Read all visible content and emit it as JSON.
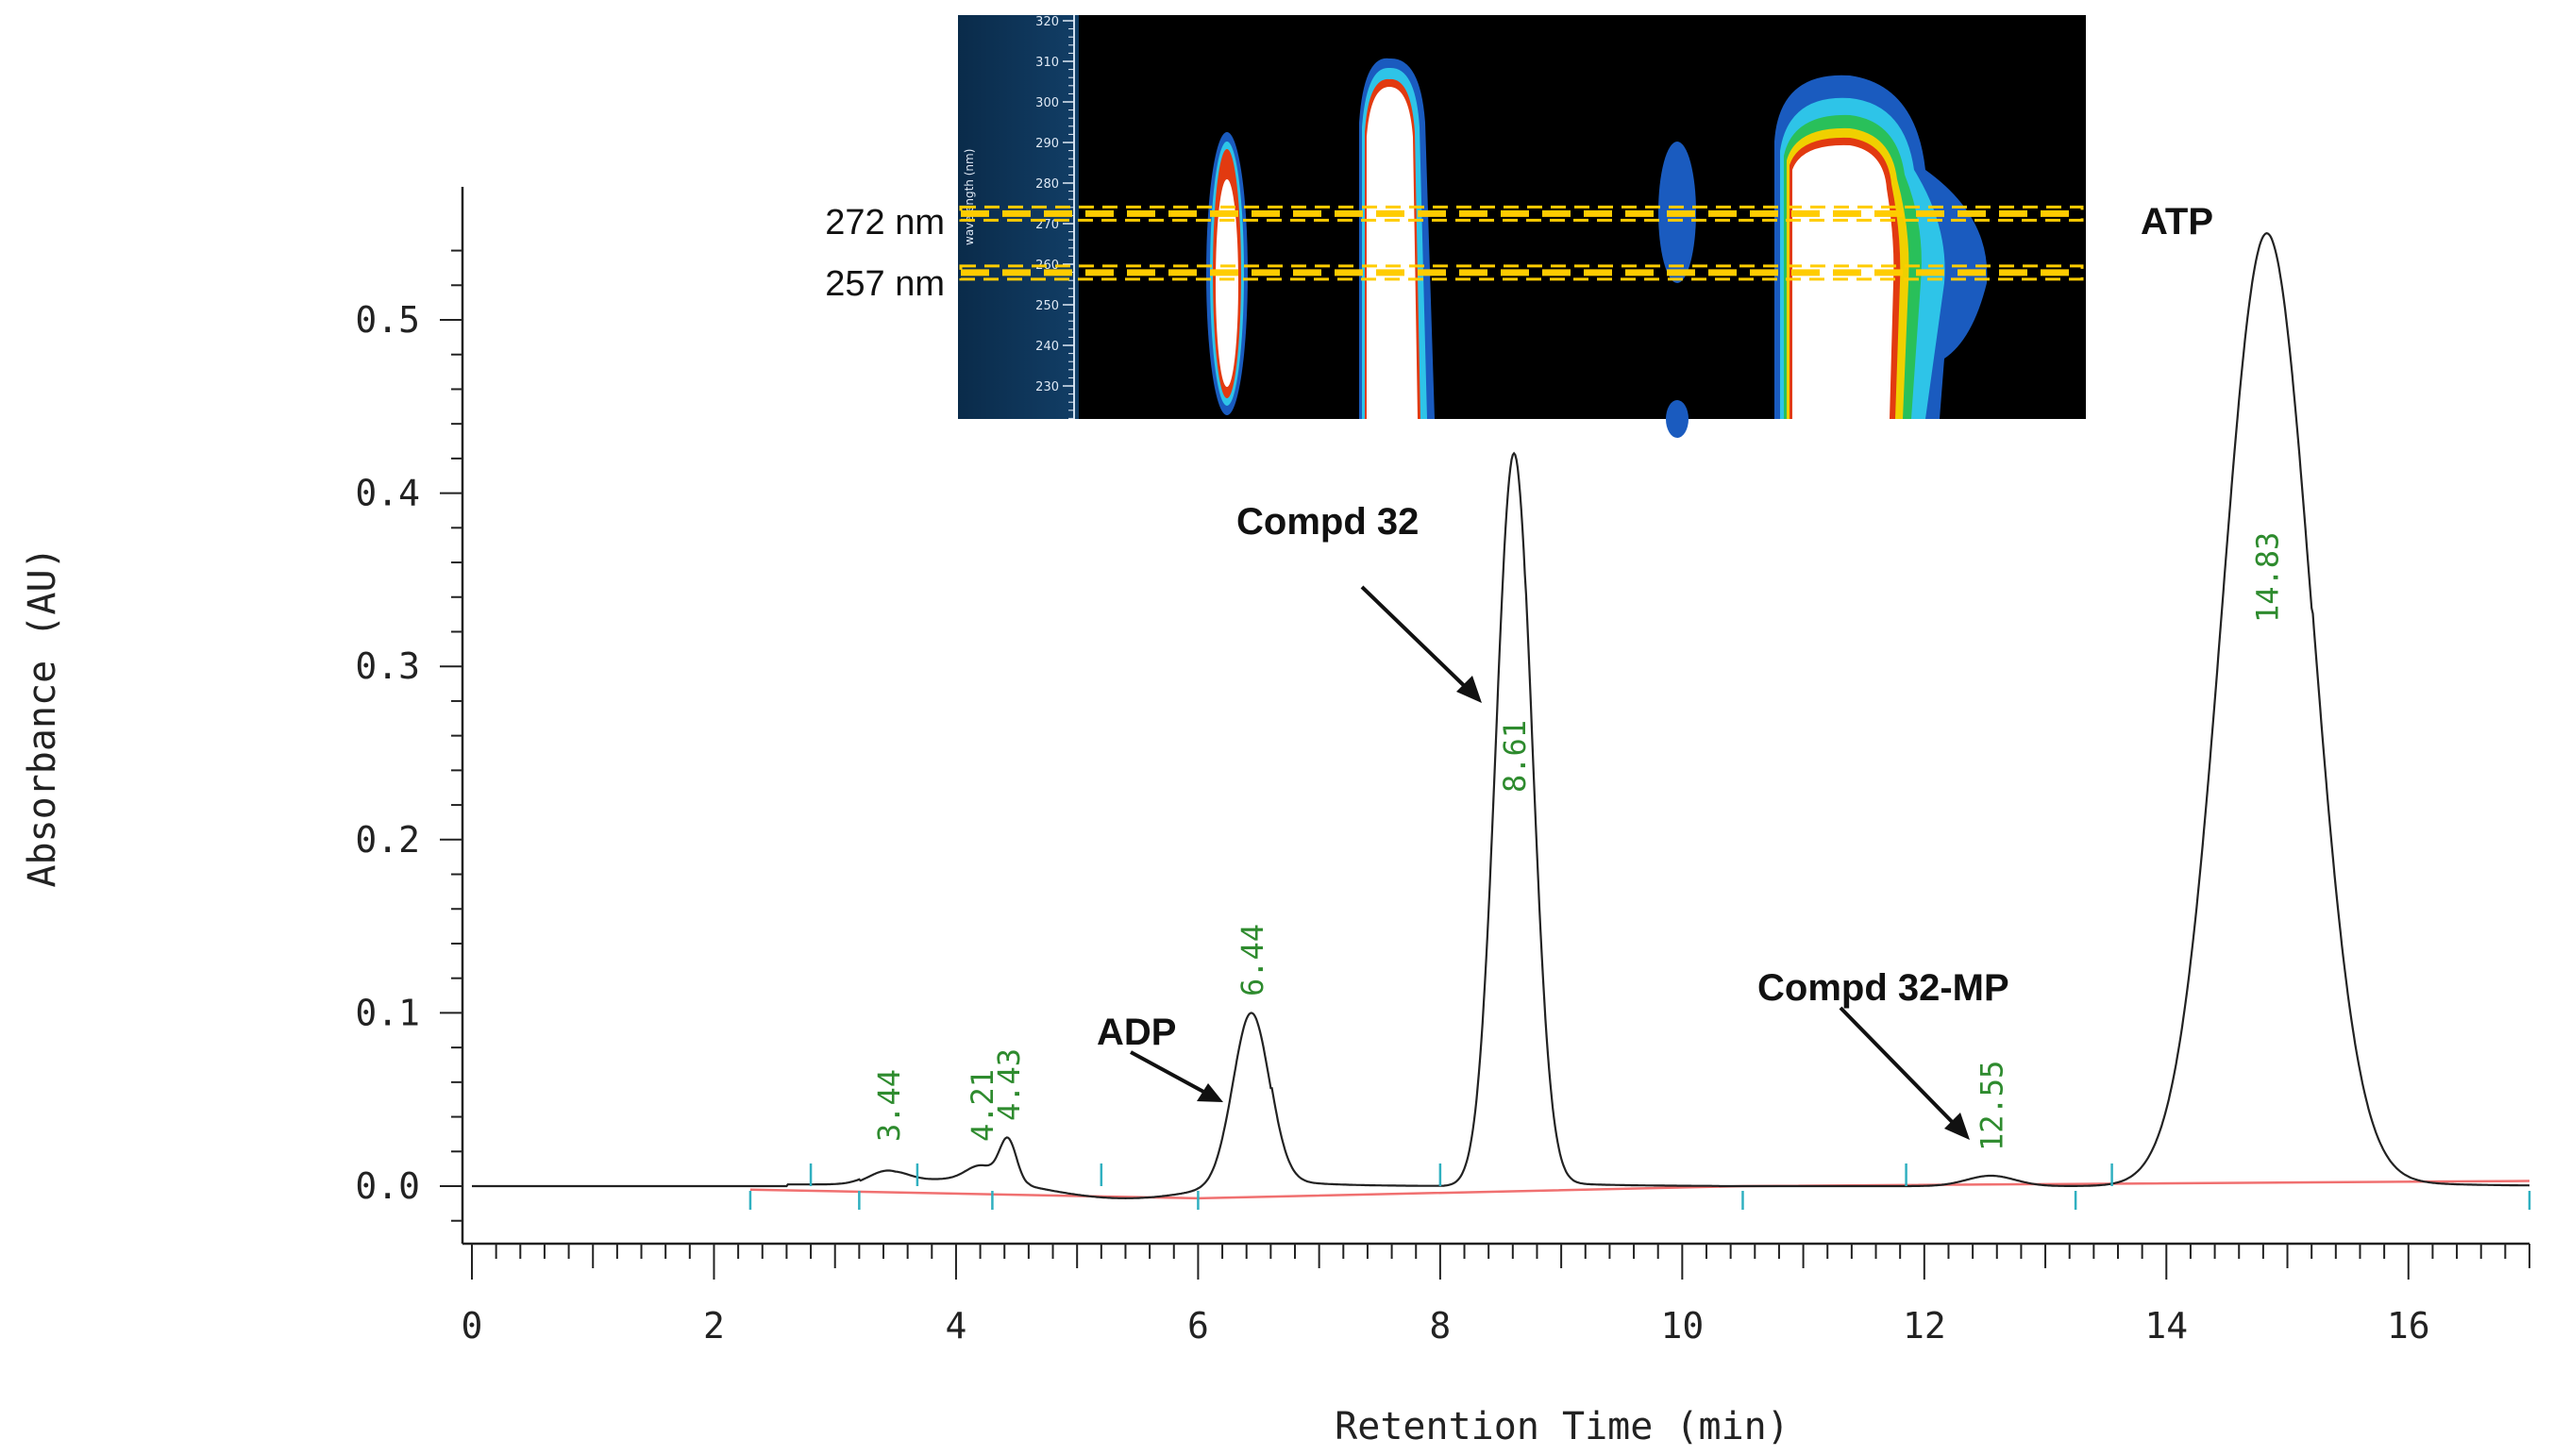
{
  "chart_data": {
    "type": "line",
    "title": "",
    "xlabel": "Retention Time (min)",
    "ylabel": "Absorbance (AU)",
    "xlim": [
      0,
      17
    ],
    "ylim": [
      -0.035,
      0.58
    ],
    "xticks": [
      0,
      2,
      4,
      6,
      8,
      10,
      12,
      14,
      16
    ],
    "xtick_labels": [
      "0",
      "2",
      "4",
      "6",
      "8",
      "10",
      "12",
      "14",
      "16"
    ],
    "yticks": [
      0.0,
      0.1,
      0.2,
      0.3,
      0.4,
      0.5
    ],
    "ytick_labels": [
      "0.0",
      "0.1",
      "0.2",
      "0.3",
      "0.4",
      "0.5"
    ],
    "series": [
      {
        "name": "chromatogram",
        "color": "#222222",
        "peaks": [
          {
            "rt": 3.44,
            "height": 0.009,
            "width": 0.16
          },
          {
            "rt": 4.21,
            "height": 0.009,
            "width": 0.12
          },
          {
            "rt": 4.43,
            "height": 0.026,
            "width": 0.07
          },
          {
            "rt": 6.44,
            "height": 0.1,
            "width": 0.15
          },
          {
            "rt": 8.61,
            "height": 0.423,
            "width": 0.15
          },
          {
            "rt": 12.55,
            "height": 0.006,
            "width": 0.2
          },
          {
            "rt": 14.83,
            "height": 0.55,
            "width": 0.37
          }
        ],
        "dip": {
          "start": 4.6,
          "end": 6.2,
          "depth": -0.007
        }
      },
      {
        "name": "baseline",
        "color": "#f07070",
        "points": [
          [
            2.3,
            -0.002
          ],
          [
            6.0,
            -0.007
          ],
          [
            10.5,
            0.0
          ],
          [
            17.0,
            0.003
          ]
        ]
      }
    ],
    "peak_labels": [
      {
        "rt": 3.44,
        "label": "3.44"
      },
      {
        "rt": 4.21,
        "label": "4.21"
      },
      {
        "rt": 4.43,
        "label": "4.43"
      },
      {
        "rt": 6.44,
        "label": "6.44"
      },
      {
        "rt": 8.61,
        "label": "8.61"
      },
      {
        "rt": 12.55,
        "label": "12.55"
      },
      {
        "rt": 14.83,
        "label": "14.83"
      }
    ],
    "integration_marks": [
      2.3,
      2.8,
      3.2,
      3.68,
      4.3,
      5.2,
      6.0,
      8.0,
      10.5,
      11.85,
      13.25,
      13.55,
      17.0
    ],
    "annotations": [
      {
        "text": "ADP",
        "target_rt": 6.44
      },
      {
        "text": "Compd 32",
        "target_rt": 8.61
      },
      {
        "text": "Compd 32-MP",
        "target_rt": 12.55
      },
      {
        "text": "ATP",
        "target_rt": 14.83
      }
    ],
    "inset": {
      "type": "heatmap",
      "description_axis": "wavelength (nm)",
      "y_ticks": [
        "320",
        "310",
        "300",
        "290",
        "280",
        "270",
        "260",
        "250",
        "240",
        "230"
      ],
      "wavelength_lines": [
        {
          "label": "272 nm",
          "nm": 272
        },
        {
          "label": "257 nm",
          "nm": 257
        }
      ],
      "colors": {
        "background": "#000000",
        "axis_panel": "#0b3355",
        "line": "#ffcc00"
      }
    }
  }
}
